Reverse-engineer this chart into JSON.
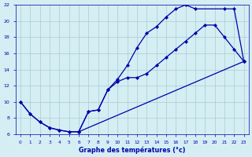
{
  "xlabel": "Graphe des températures (°c)",
  "bg_color": "#d4eef4",
  "grid_color": "#aacccc",
  "line_color": "#0000aa",
  "xlim": [
    -0.5,
    23.5
  ],
  "ylim": [
    6,
    22
  ],
  "yticks": [
    6,
    8,
    10,
    12,
    14,
    16,
    18,
    20,
    22
  ],
  "xticks": [
    0,
    1,
    2,
    3,
    4,
    5,
    6,
    7,
    8,
    9,
    10,
    11,
    12,
    13,
    14,
    15,
    16,
    17,
    18,
    19,
    20,
    21,
    22,
    23
  ],
  "line1_x": [
    0,
    1,
    2,
    3,
    4,
    5,
    6,
    23
  ],
  "line1_y": [
    10,
    8.5,
    7.5,
    6.8,
    6.5,
    6.3,
    6.3,
    15
  ],
  "line2_x": [
    0,
    1,
    2,
    3,
    4,
    5,
    6,
    7,
    8,
    9,
    10,
    11,
    12,
    13,
    14,
    15,
    16,
    17,
    18,
    21,
    22,
    23
  ],
  "line2_y": [
    10,
    8.5,
    7.5,
    6.8,
    6.5,
    6.3,
    6.3,
    8.8,
    9.0,
    11.5,
    12.8,
    14.5,
    16.7,
    18.5,
    19.3,
    20.5,
    21.5,
    22,
    21.5,
    21.5,
    21.5,
    15
  ],
  "line3_x": [
    6,
    7,
    8,
    9,
    10,
    11,
    12,
    13,
    14,
    15,
    16,
    17,
    18,
    19,
    20,
    21,
    22,
    23
  ],
  "line3_y": [
    6.3,
    8.8,
    9.0,
    11.5,
    12.5,
    13.0,
    13.0,
    13.5,
    14.5,
    15.5,
    16.5,
    17.5,
    18.5,
    19.5,
    19.5,
    18.0,
    16.5,
    15
  ]
}
